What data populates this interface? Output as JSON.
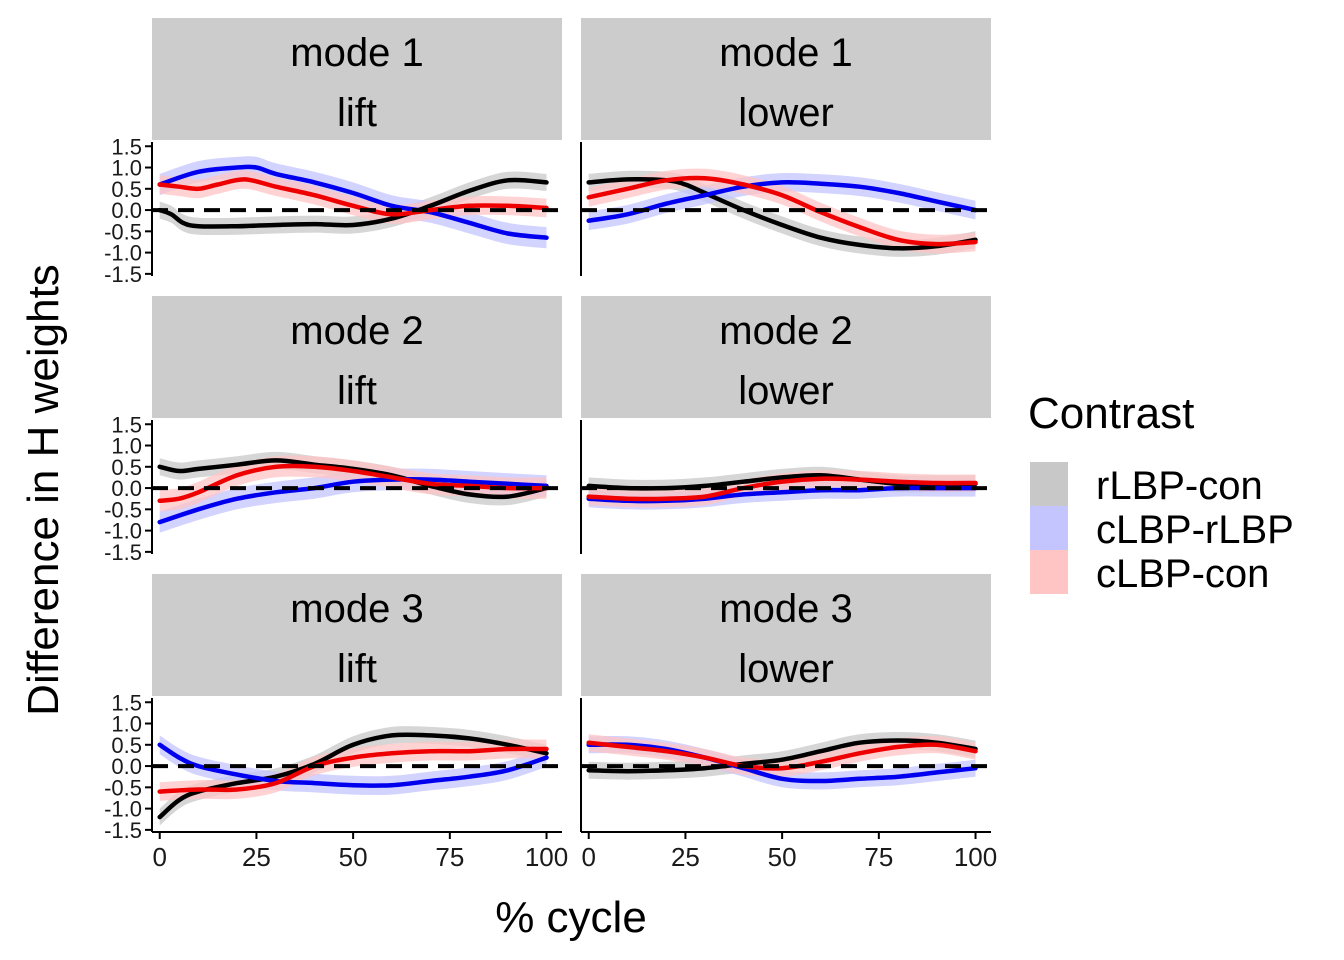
{
  "chart_data": {
    "type": "line",
    "ylabel": "Difference in H weights",
    "xlabel": "% cycle",
    "x_ticks": [
      0,
      25,
      50,
      75,
      100
    ],
    "y_ticks": [
      -1.5,
      -1.0,
      -0.5,
      0.0,
      0.5,
      1.0,
      1.5
    ],
    "y_tick_labels": [
      "-1.5",
      "-1.0",
      "-0.5",
      "0.0",
      "0.5",
      "1.0",
      "1.5"
    ],
    "xlim": [
      -2,
      104
    ],
    "ylim": [
      -1.55,
      1.6
    ],
    "grid": false,
    "reference_line": {
      "y": 0,
      "style": "dashed"
    },
    "legend": {
      "title": "Contrast",
      "placement": "right",
      "entries": [
        {
          "name": "rLBP-con",
          "line_color": "#000000",
          "ribbon_color": "#c8c8c8"
        },
        {
          "name": "cLBP-rLBP",
          "line_color": "#0000ee",
          "ribbon_color": "#c4c4ff"
        },
        {
          "name": "cLBP-con",
          "line_color": "#ee0000",
          "ribbon_color": "#ffc4c4"
        }
      ]
    },
    "panels": [
      {
        "strip": [
          "mode 1",
          "lift"
        ],
        "series": [
          {
            "name": "rLBP-con",
            "band": 0.2,
            "x": [
              0,
              3,
              6,
              10,
              20,
              30,
              40,
              50,
              60,
              70,
              80,
              90,
              100
            ],
            "y": [
              0.0,
              -0.1,
              -0.3,
              -0.38,
              -0.38,
              -0.35,
              -0.33,
              -0.35,
              -0.2,
              0.1,
              0.45,
              0.7,
              0.65
            ]
          },
          {
            "name": "cLBP-rLBP",
            "band": 0.25,
            "x": [
              0,
              10,
              20,
              25,
              30,
              40,
              50,
              60,
              70,
              80,
              90,
              100
            ],
            "y": [
              0.6,
              0.9,
              1.0,
              1.0,
              0.85,
              0.65,
              0.4,
              0.1,
              -0.05,
              -0.3,
              -0.55,
              -0.65
            ]
          },
          {
            "name": "cLBP-con",
            "band": 0.22,
            "x": [
              0,
              5,
              10,
              15,
              22,
              30,
              40,
              50,
              60,
              70,
              80,
              90,
              100
            ],
            "y": [
              0.6,
              0.55,
              0.5,
              0.6,
              0.72,
              0.55,
              0.35,
              0.1,
              -0.1,
              0.0,
              0.1,
              0.1,
              0.05
            ]
          }
        ]
      },
      {
        "strip": [
          "mode 1",
          "lower"
        ],
        "series": [
          {
            "name": "rLBP-con",
            "band": 0.2,
            "x": [
              0,
              10,
              20,
              25,
              30,
              40,
              50,
              60,
              70,
              80,
              90,
              100
            ],
            "y": [
              0.65,
              0.72,
              0.7,
              0.6,
              0.4,
              0.0,
              -0.35,
              -0.65,
              -0.82,
              -0.9,
              -0.85,
              -0.7
            ]
          },
          {
            "name": "cLBP-rLBP",
            "band": 0.22,
            "x": [
              0,
              10,
              20,
              30,
              40,
              50,
              60,
              70,
              80,
              90,
              100
            ],
            "y": [
              -0.25,
              -0.1,
              0.15,
              0.35,
              0.55,
              0.65,
              0.62,
              0.55,
              0.4,
              0.2,
              0.0
            ]
          },
          {
            "name": "cLBP-con",
            "band": 0.22,
            "x": [
              0,
              10,
              20,
              30,
              40,
              50,
              60,
              70,
              80,
              90,
              100
            ],
            "y": [
              0.3,
              0.5,
              0.7,
              0.75,
              0.6,
              0.35,
              -0.05,
              -0.4,
              -0.7,
              -0.8,
              -0.75
            ]
          }
        ]
      },
      {
        "strip": [
          "mode 2",
          "lift"
        ],
        "series": [
          {
            "name": "rLBP-con",
            "band": 0.2,
            "x": [
              0,
              5,
              10,
              20,
              30,
              40,
              50,
              60,
              70,
              80,
              90,
              100
            ],
            "y": [
              0.5,
              0.4,
              0.45,
              0.55,
              0.65,
              0.55,
              0.45,
              0.3,
              0.05,
              -0.15,
              -0.2,
              0.0
            ]
          },
          {
            "name": "cLBP-rLBP",
            "band": 0.25,
            "x": [
              0,
              10,
              20,
              30,
              40,
              50,
              60,
              70,
              80,
              90,
              100
            ],
            "y": [
              -0.8,
              -0.5,
              -0.25,
              -0.1,
              0.0,
              0.15,
              0.2,
              0.2,
              0.15,
              0.1,
              0.05
            ]
          },
          {
            "name": "cLBP-con",
            "band": 0.25,
            "x": [
              0,
              5,
              10,
              20,
              30,
              40,
              50,
              60,
              70,
              80,
              90,
              100
            ],
            "y": [
              -0.3,
              -0.25,
              -0.1,
              0.3,
              0.5,
              0.5,
              0.4,
              0.25,
              0.1,
              0.05,
              0.0,
              0.0
            ]
          }
        ]
      },
      {
        "strip": [
          "mode 2",
          "lower"
        ],
        "series": [
          {
            "name": "rLBP-con",
            "band": 0.2,
            "x": [
              0,
              10,
              20,
              30,
              40,
              50,
              60,
              70,
              80,
              90,
              100
            ],
            "y": [
              0.05,
              0.0,
              0.0,
              0.05,
              0.15,
              0.25,
              0.3,
              0.2,
              0.1,
              0.1,
              0.1
            ]
          },
          {
            "name": "cLBP-rLBP",
            "band": 0.2,
            "x": [
              0,
              10,
              20,
              30,
              40,
              50,
              60,
              70,
              80,
              90,
              100
            ],
            "y": [
              -0.25,
              -0.3,
              -0.3,
              -0.25,
              -0.15,
              -0.1,
              -0.05,
              -0.05,
              0.0,
              0.0,
              0.0
            ]
          },
          {
            "name": "cLBP-con",
            "band": 0.2,
            "x": [
              0,
              10,
              20,
              30,
              40,
              50,
              60,
              70,
              80,
              90,
              100
            ],
            "y": [
              -0.2,
              -0.25,
              -0.25,
              -0.2,
              0.0,
              0.15,
              0.22,
              0.2,
              0.15,
              0.12,
              0.12
            ]
          }
        ]
      },
      {
        "strip": [
          "mode 3",
          "lift"
        ],
        "series": [
          {
            "name": "rLBP-con",
            "band": 0.2,
            "x": [
              0,
              5,
              10,
              20,
              30,
              40,
              50,
              60,
              70,
              80,
              90,
              100
            ],
            "y": [
              -1.2,
              -0.8,
              -0.6,
              -0.4,
              -0.25,
              0.05,
              0.5,
              0.72,
              0.72,
              0.65,
              0.5,
              0.3
            ]
          },
          {
            "name": "cLBP-rLBP",
            "band": 0.22,
            "x": [
              0,
              5,
              10,
              20,
              30,
              40,
              50,
              60,
              70,
              80,
              90,
              100
            ],
            "y": [
              0.5,
              0.2,
              0.0,
              -0.2,
              -0.35,
              -0.4,
              -0.45,
              -0.45,
              -0.35,
              -0.25,
              -0.1,
              0.2
            ]
          },
          {
            "name": "cLBP-con",
            "band": 0.22,
            "x": [
              0,
              10,
              20,
              30,
              40,
              50,
              60,
              70,
              80,
              90,
              100
            ],
            "y": [
              -0.6,
              -0.55,
              -0.55,
              -0.4,
              0.0,
              0.2,
              0.3,
              0.35,
              0.35,
              0.4,
              0.4
            ]
          }
        ]
      },
      {
        "strip": [
          "mode 3",
          "lower"
        ],
        "series": [
          {
            "name": "rLBP-con",
            "band": 0.2,
            "x": [
              0,
              10,
              20,
              30,
              40,
              50,
              60,
              70,
              80,
              90,
              100
            ],
            "y": [
              -0.1,
              -0.12,
              -0.1,
              -0.05,
              0.05,
              0.15,
              0.35,
              0.55,
              0.6,
              0.55,
              0.4
            ]
          },
          {
            "name": "cLBP-rLBP",
            "band": 0.2,
            "x": [
              0,
              10,
              20,
              30,
              40,
              50,
              60,
              70,
              80,
              90,
              100
            ],
            "y": [
              0.5,
              0.5,
              0.4,
              0.2,
              -0.05,
              -0.3,
              -0.35,
              -0.3,
              -0.25,
              -0.15,
              -0.05
            ]
          },
          {
            "name": "cLBP-con",
            "band": 0.2,
            "x": [
              0,
              10,
              20,
              30,
              40,
              50,
              60,
              70,
              80,
              90,
              100
            ],
            "y": [
              0.55,
              0.45,
              0.35,
              0.2,
              0.0,
              -0.05,
              0.1,
              0.3,
              0.45,
              0.5,
              0.35
            ]
          }
        ]
      }
    ]
  }
}
